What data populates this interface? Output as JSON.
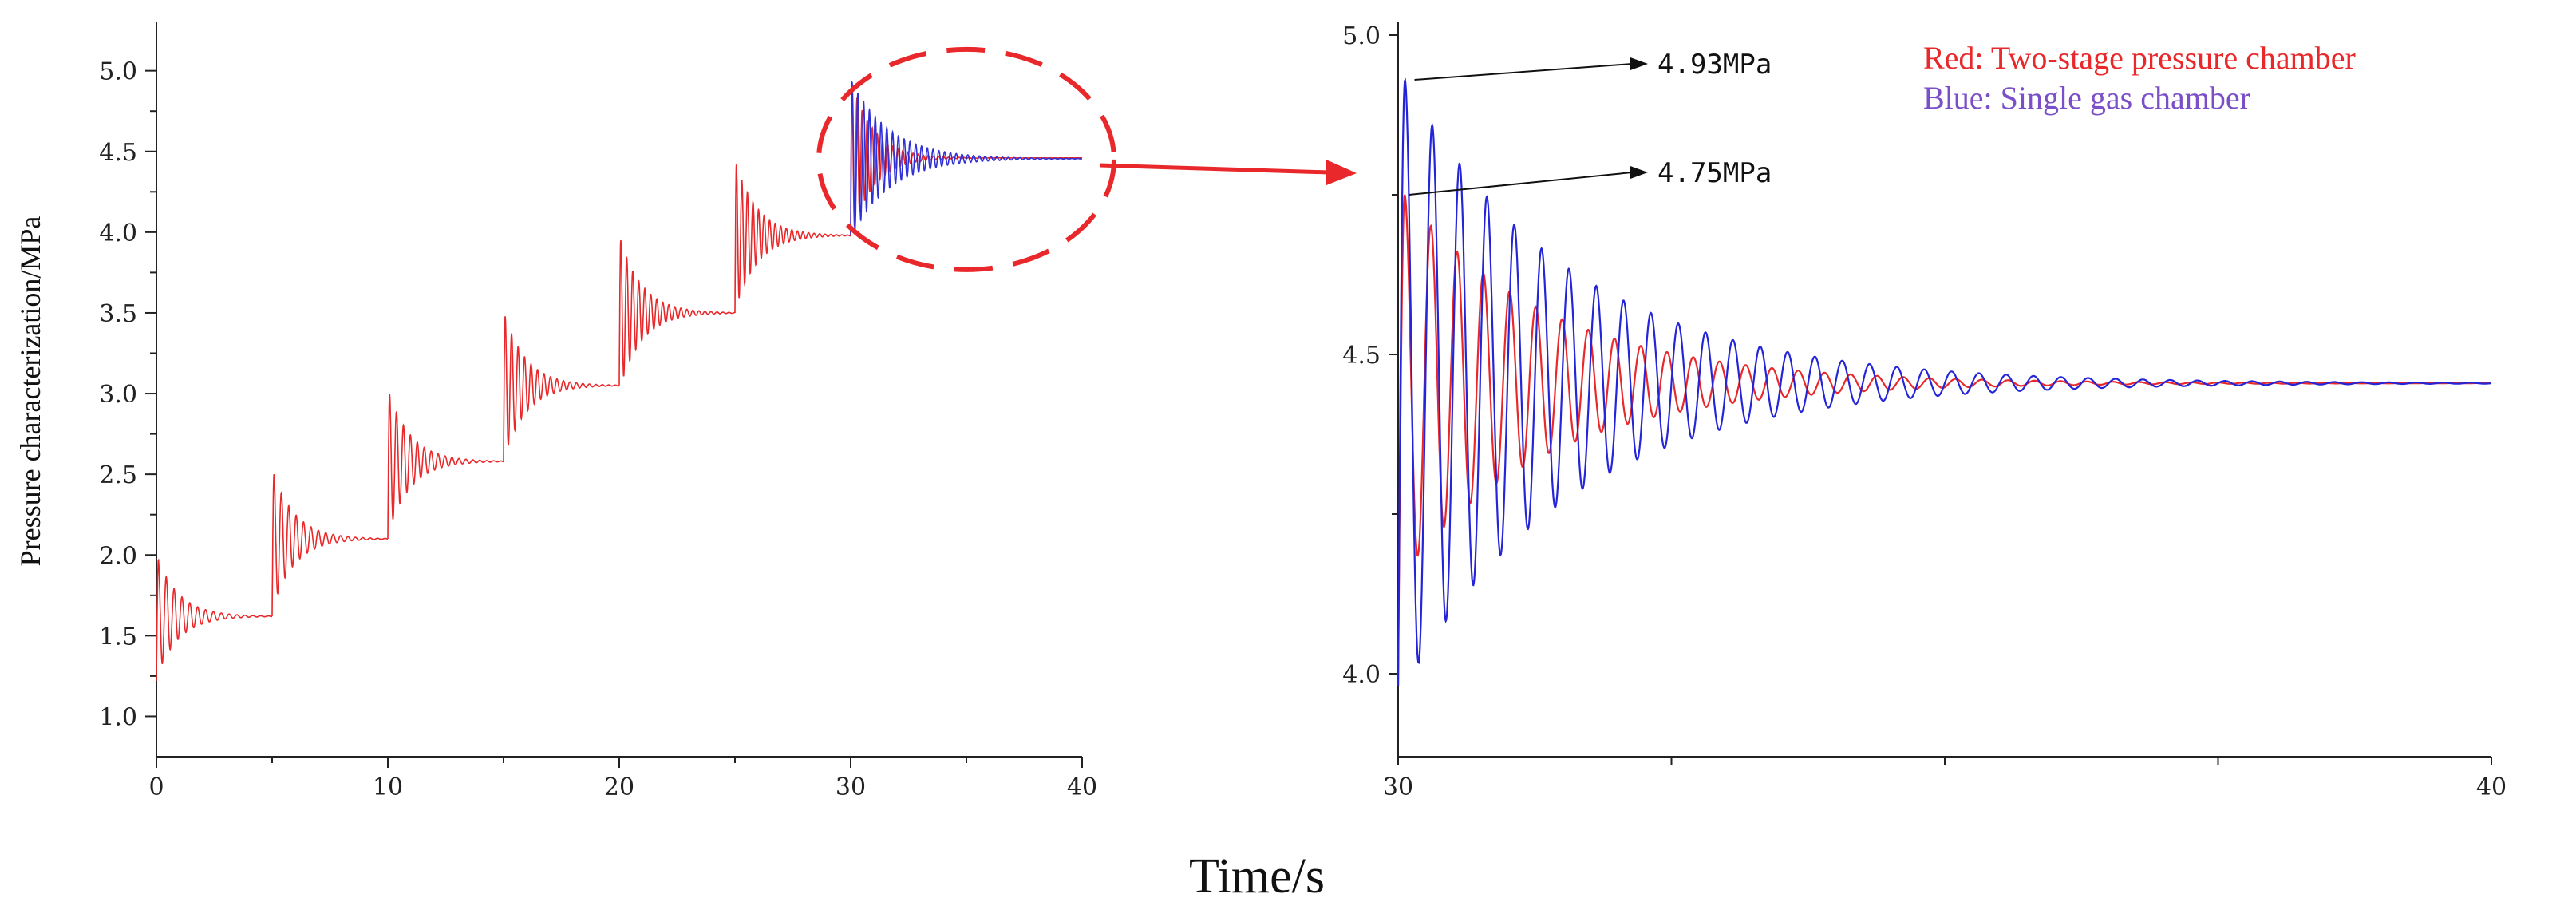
{
  "shared_xlabel": "Time/s",
  "chart_data": [
    {
      "type": "line",
      "title": "",
      "xlabel": "",
      "ylabel": "Pressure characterization/MPa",
      "xlim": [
        0,
        40
      ],
      "ylim": [
        0.75,
        5.3
      ],
      "xticks": [
        0,
        10,
        20,
        30,
        40
      ],
      "yticks": [
        1.0,
        1.5,
        2.0,
        2.5,
        3.0,
        3.5,
        4.0,
        4.5,
        5.0
      ],
      "grid": false,
      "steps": [
        {
          "t": 0,
          "peak": 1.97,
          "settle": 1.62
        },
        {
          "t": 5,
          "peak": 2.5,
          "settle": 2.1
        },
        {
          "t": 10,
          "peak": 3.0,
          "settle": 2.58
        },
        {
          "t": 15,
          "peak": 3.48,
          "settle": 3.05
        },
        {
          "t": 20,
          "peak": 3.95,
          "settle": 3.5
        },
        {
          "t": 25,
          "peak": 4.42,
          "settle": 3.98
        },
        {
          "t": 30,
          "peak": 4.93,
          "settle": 4.46
        }
      ],
      "series": [
        {
          "name": "Two-stage pressure chamber",
          "color": "#e8282a"
        },
        {
          "name": "Single gas chamber",
          "color": "#3030d8"
        }
      ],
      "highlight_region": {
        "x": [
          30,
          40
        ],
        "shape": "dashed-ellipse",
        "color": "#e8282a"
      }
    },
    {
      "type": "line",
      "title": "",
      "xlabel": "",
      "ylabel": "",
      "xlim": [
        30,
        40
      ],
      "ylim": [
        3.87,
        5.02
      ],
      "xticks": [
        30,
        40
      ],
      "yticks": [
        4.0,
        4.5,
        5.0
      ],
      "grid": false,
      "series": [
        {
          "name": "Two-stage pressure chamber",
          "color": "#e8282a",
          "start": 3.98,
          "peak": 4.75,
          "settle": 4.455,
          "period": 0.24,
          "decay": 0.75
        },
        {
          "name": "Single gas chamber",
          "color": "#2424d8",
          "start": 3.98,
          "peak": 4.93,
          "settle": 4.455,
          "period": 0.25,
          "decay": 0.65
        }
      ],
      "annotations": [
        {
          "text": "4.93MPa",
          "x": 30.15,
          "y": 4.93
        },
        {
          "text": "4.75MPa",
          "x": 30.1,
          "y": 4.75
        }
      ],
      "legend": {
        "placement": "top-right",
        "items": [
          {
            "text": "Red: Two-stage pressure chamber",
            "color": "#e8282a"
          },
          {
            "text": "Blue: Single gas chamber",
            "color": "#7a4fc8"
          }
        ]
      }
    }
  ]
}
